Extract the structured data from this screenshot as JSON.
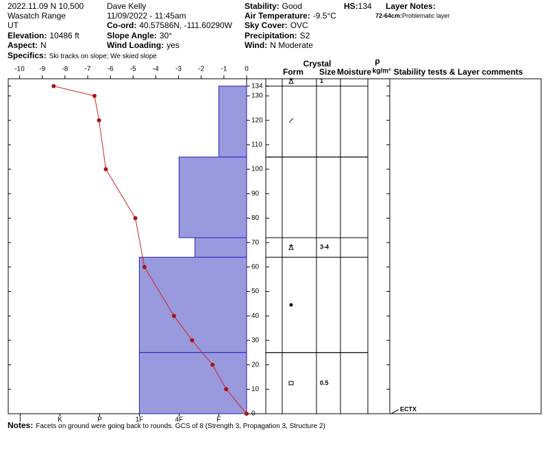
{
  "header": {
    "plain": [
      "2022.11.09 N 10,500",
      "Wasatch Range",
      "UT",
      "Dave Kelly",
      "11/09/2022 - 11:45am"
    ],
    "fields": [
      {
        "label": "Elevation:",
        "value": "10486 ft"
      },
      {
        "label": "Aspect:",
        "value": "N"
      },
      {
        "label": "Co-ord:",
        "value": "40.57586N, -111.60290W"
      },
      {
        "label": "Slope Angle:",
        "value": "30°"
      },
      {
        "label": "Wind Loading:",
        "value": "yes"
      },
      {
        "label": "Stability:",
        "value": "Good"
      },
      {
        "label": "Air Temperature:",
        "value": "-9.5°C"
      },
      {
        "label": "Sky Cover:",
        "value": "OVC"
      },
      {
        "label": "Precipitation:",
        "value": "S2"
      },
      {
        "label": "Wind:",
        "value": "N Moderate"
      },
      {
        "label": "HS:",
        "value": "134"
      }
    ],
    "specifics": {
      "label": "Specifics:",
      "value": "Ski tracks on slope; We skied slope"
    },
    "layer_notes": {
      "title": "Layer Notes:",
      "label": "72-64cm:",
      "value": "Problematic layer"
    }
  },
  "chart_data": {
    "type": "snowpit",
    "ylim": [
      0,
      137
    ],
    "yticks": [
      0,
      10,
      20,
      30,
      40,
      50,
      60,
      70,
      80,
      90,
      100,
      110,
      120,
      130,
      134
    ],
    "xlim": [
      -10.5,
      0
    ],
    "xticks": [
      -10,
      -9,
      -8,
      -7,
      -6,
      -5,
      -4,
      -3,
      -2,
      -1,
      0
    ],
    "hardness_lim": [
      0.3,
      6.3
    ],
    "hardness_ticks": [
      {
        "value": 6,
        "label": "I"
      },
      {
        "value": 5,
        "label": "K"
      },
      {
        "value": 4,
        "label": "P"
      },
      {
        "value": 3,
        "label": "1F"
      },
      {
        "value": 2,
        "label": "4F"
      },
      {
        "value": 1,
        "label": "F"
      }
    ],
    "layers": [
      {
        "top": 134,
        "bottom": 105,
        "hardness": 1
      },
      {
        "top": 105,
        "bottom": 72,
        "hardness": 2
      },
      {
        "top": 72,
        "bottom": 64,
        "hardness": 1.6
      },
      {
        "top": 64,
        "bottom": 25,
        "hardness": 3
      },
      {
        "top": 25,
        "bottom": 0,
        "hardness": 3
      }
    ],
    "layer_color": "#9999dd",
    "temperature": {
      "color": "#cc2222",
      "height": [
        134,
        130,
        120,
        100,
        80,
        60,
        40,
        30,
        20,
        10,
        0
      ],
      "values": [
        -8.5,
        -6.7,
        -6.5,
        -6.2,
        -4.9,
        -4.5,
        -3.2,
        -2.4,
        -1.5,
        -0.9,
        0
      ]
    },
    "grains": [
      {
        "height": 136,
        "size": "1"
      },
      {
        "height": 120
      },
      {
        "height": 68,
        "size": "3-4"
      },
      {
        "height": 44.5
      },
      {
        "height": 12.5,
        "size": "0.5"
      }
    ],
    "table_headers": {
      "crystal": "Crystal",
      "form": "Form",
      "size": "Size",
      "moisture": "Moisture",
      "rho": "ρ",
      "density": "kg/m³",
      "comments": "Stability tests & Layer comments"
    },
    "tests": [
      {
        "label": "ECTX",
        "height": 0
      }
    ]
  },
  "notes": {
    "label": "Notes:",
    "value": "Facets on ground were going back to rounds. GCS of 8 (Strength 3, Propagation 3, Structure 2)"
  }
}
